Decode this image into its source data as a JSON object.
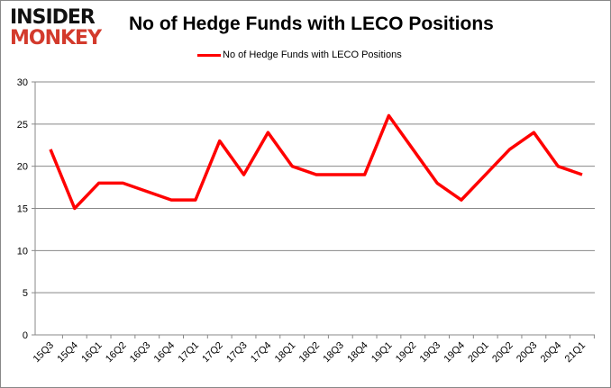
{
  "logo": {
    "line1": "INSIDER",
    "line2": "MONKEY"
  },
  "chart_data": {
    "type": "line",
    "title": "No of Hedge Funds with LECO Positions",
    "xlabel": "",
    "ylabel": "",
    "categories": [
      "15Q3",
      "15Q4",
      "16Q1",
      "16Q2",
      "16Q3",
      "16Q4",
      "17Q1",
      "17Q2",
      "17Q3",
      "17Q4",
      "18Q1",
      "18Q2",
      "18Q3",
      "18Q4",
      "19Q1",
      "19Q2",
      "19Q3",
      "19Q4",
      "20Q1",
      "20Q2",
      "20Q3",
      "20Q4",
      "21Q1"
    ],
    "series": [
      {
        "name": "No of Hedge Funds with LECO Positions",
        "color": "#ff0000",
        "values": [
          22,
          15,
          18,
          18,
          17,
          16,
          16,
          23,
          19,
          24,
          20,
          19,
          19,
          19,
          26,
          22,
          18,
          16,
          19,
          22,
          24,
          20,
          19
        ]
      }
    ],
    "ylim": [
      0,
      30
    ],
    "yticks": [
      0,
      5,
      10,
      15,
      20,
      25,
      30
    ],
    "grid": true,
    "legend": "top-center"
  }
}
